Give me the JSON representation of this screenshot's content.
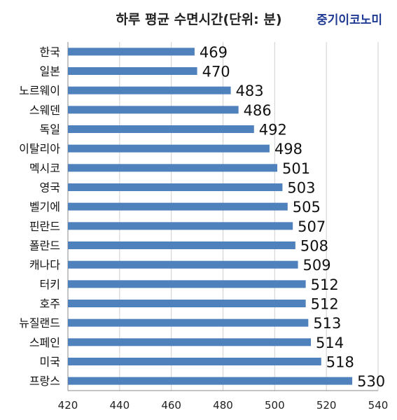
{
  "header": {
    "title": "하루 평균 수면시간(단위: 분)",
    "brand": "중기이코노미"
  },
  "colors": {
    "bar": "#4f81bd",
    "gridline": "#cfcfcf",
    "axis": "#888888",
    "brand": "#1f3a93"
  },
  "chart_data": {
    "type": "bar",
    "orientation": "horizontal",
    "title": "하루 평균 수면시간(단위: 분)",
    "xlabel": "",
    "ylabel": "",
    "xlim": [
      420,
      540
    ],
    "xticks": [
      420,
      440,
      460,
      480,
      500,
      520,
      540
    ],
    "grid": true,
    "legend": "none",
    "categories": [
      "한국",
      "일본",
      "노르웨이",
      "스웨덴",
      "독일",
      "이탈리아",
      "멕시코",
      "영국",
      "벨기에",
      "핀란드",
      "폴란드",
      "캐나다",
      "터키",
      "호주",
      "뉴질랜드",
      "스페인",
      "미국",
      "프랑스"
    ],
    "values": [
      469,
      470,
      483,
      486,
      492,
      498,
      501,
      503,
      505,
      507,
      508,
      509,
      512,
      512,
      513,
      514,
      518,
      530
    ]
  }
}
